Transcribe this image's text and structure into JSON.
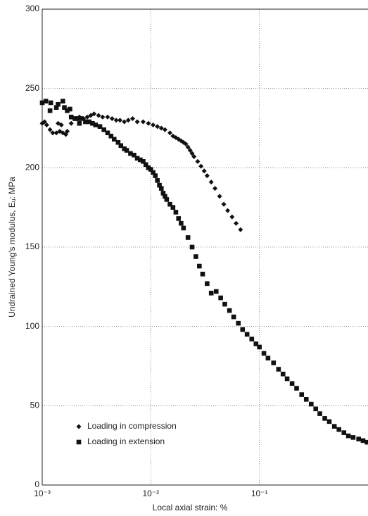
{
  "chart_data": {
    "type": "scatter",
    "x_label": "Local axial strain: %",
    "y_label": "Undrained Young's modulus, Eᵤ: MPa",
    "xscale": "log",
    "grid": true,
    "legend": "lower left",
    "xlim": [
      0.001,
      1
    ],
    "xticks": [
      {
        "value": 0.001,
        "label": "10⁻³"
      },
      {
        "value": 0.01,
        "label": "10⁻²"
      },
      {
        "value": 0.1,
        "label": "10⁻¹"
      }
    ],
    "ylim": [
      0,
      300
    ],
    "yticks": [
      0,
      50,
      100,
      150,
      200,
      250,
      300
    ],
    "series": [
      {
        "name": "Loading in compression",
        "color": "#111",
        "marker": "diamond",
        "x": [
          0.001,
          0.00105,
          0.0011,
          0.00118,
          0.00125,
          0.00135,
          0.00145,
          0.00155,
          0.00165,
          0.0017,
          0.0014,
          0.0015,
          0.00185,
          0.002,
          0.0022,
          0.0024,
          0.0026,
          0.0028,
          0.003,
          0.0033,
          0.0036,
          0.004,
          0.0044,
          0.0048,
          0.0052,
          0.0057,
          0.0062,
          0.0068,
          0.0075,
          0.0085,
          0.0095,
          0.0105,
          0.0115,
          0.0125,
          0.0135,
          0.015,
          0.016,
          0.017,
          0.018,
          0.019,
          0.02,
          0.021,
          0.022,
          0.023,
          0.024,
          0.025,
          0.027,
          0.029,
          0.031,
          0.033,
          0.036,
          0.039,
          0.043,
          0.047,
          0.051,
          0.056,
          0.061,
          0.067
        ],
        "values": [
          228,
          229,
          227,
          224,
          222,
          222,
          223,
          222,
          221,
          223,
          228,
          227,
          228,
          231,
          232,
          231,
          232,
          233,
          234,
          233,
          232,
          232,
          231,
          230,
          230,
          229,
          230,
          231,
          229,
          229,
          228,
          227,
          226,
          225,
          224,
          222,
          220,
          219,
          218,
          217,
          216,
          215,
          213,
          211,
          209,
          207,
          204,
          201,
          198,
          195,
          191,
          187,
          182,
          177,
          173,
          169,
          165,
          161
        ]
      },
      {
        "name": "Loading in extension",
        "color": "#111",
        "marker": "square",
        "x": [
          0.001,
          0.00108,
          0.00118,
          0.0012,
          0.00135,
          0.0014,
          0.00155,
          0.0016,
          0.0017,
          0.0018,
          0.00185,
          0.002,
          0.0021,
          0.0023,
          0.0022,
          0.0025,
          0.0027,
          0.0029,
          0.0031,
          0.0034,
          0.0037,
          0.004,
          0.0043,
          0.0046,
          0.005,
          0.0053,
          0.0057,
          0.006,
          0.0065,
          0.007,
          0.0075,
          0.008,
          0.0085,
          0.009,
          0.0095,
          0.01,
          0.0105,
          0.011,
          0.0115,
          0.012,
          0.0125,
          0.013,
          0.0135,
          0.014,
          0.015,
          0.016,
          0.017,
          0.018,
          0.019,
          0.02,
          0.022,
          0.024,
          0.026,
          0.028,
          0.03,
          0.033,
          0.036,
          0.04,
          0.044,
          0.048,
          0.053,
          0.058,
          0.064,
          0.07,
          0.077,
          0.085,
          0.093,
          0.1,
          0.11,
          0.12,
          0.135,
          0.15,
          0.165,
          0.18,
          0.2,
          0.22,
          0.245,
          0.27,
          0.3,
          0.33,
          0.36,
          0.4,
          0.44,
          0.49,
          0.54,
          0.6,
          0.66,
          0.73,
          0.82,
          0.9,
          0.98
        ],
        "values": [
          241,
          242,
          236,
          241,
          238,
          240,
          242,
          238,
          236,
          237,
          232,
          231,
          231,
          231,
          228,
          229,
          229,
          228,
          227,
          226,
          224,
          222,
          220,
          218,
          216,
          214,
          212,
          211,
          209,
          208,
          206,
          205,
          204,
          202,
          200,
          199,
          197,
          195,
          192,
          189,
          187,
          184,
          182,
          180,
          177,
          175,
          172,
          168,
          165,
          162,
          156,
          150,
          144,
          138,
          133,
          127,
          121,
          122,
          118,
          114,
          110,
          106,
          102,
          98,
          95,
          92,
          89,
          87,
          83,
          80,
          77,
          73,
          70,
          67,
          64,
          61,
          57,
          54,
          51,
          48,
          45,
          42,
          40,
          37,
          35,
          33,
          31,
          30,
          29,
          28,
          27
        ]
      }
    ]
  }
}
